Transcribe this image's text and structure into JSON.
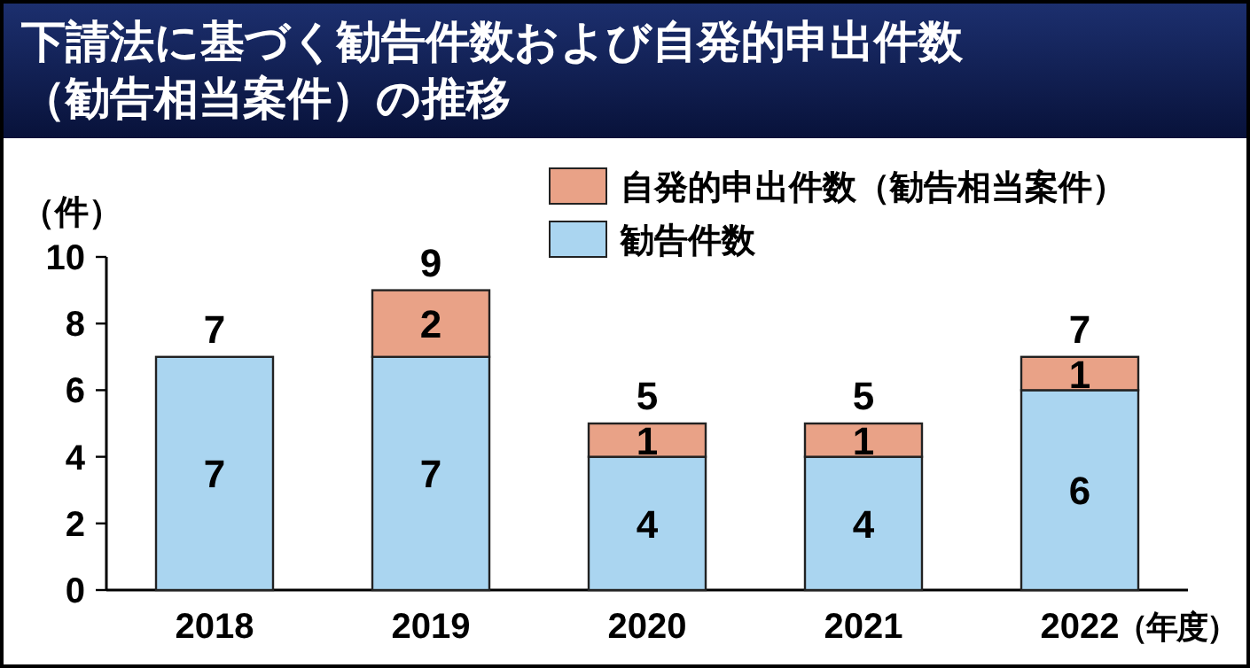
{
  "chart_data": {
    "type": "bar",
    "title": "下請法に基づく勧告件数および自発的申出件数（勧告相当案件）の推移",
    "xlabel": "（年度）",
    "ylabel": "（件）",
    "categories": [
      "2018",
      "2019",
      "2020",
      "2021",
      "2022"
    ],
    "stacked": true,
    "legend": "top right",
    "series": [
      {
        "name": "勧告件数",
        "color": "#aad5f0",
        "values": [
          7,
          7,
          4,
          4,
          6
        ],
        "value_labels": [
          "7",
          "7",
          "4",
          "4",
          "6"
        ]
      },
      {
        "name": "自発的申出件数（勧告相当案件）",
        "color": "#e9a287",
        "values": [
          0,
          2,
          1,
          1,
          1
        ],
        "value_labels": [
          null,
          "2",
          "1",
          "1",
          "1"
        ]
      }
    ],
    "totals": [
      "7",
      "9",
      "5",
      "5",
      "7"
    ],
    "ylim": [
      0,
      10
    ],
    "yticks": [
      0,
      2,
      4,
      6,
      8,
      10
    ]
  }
}
